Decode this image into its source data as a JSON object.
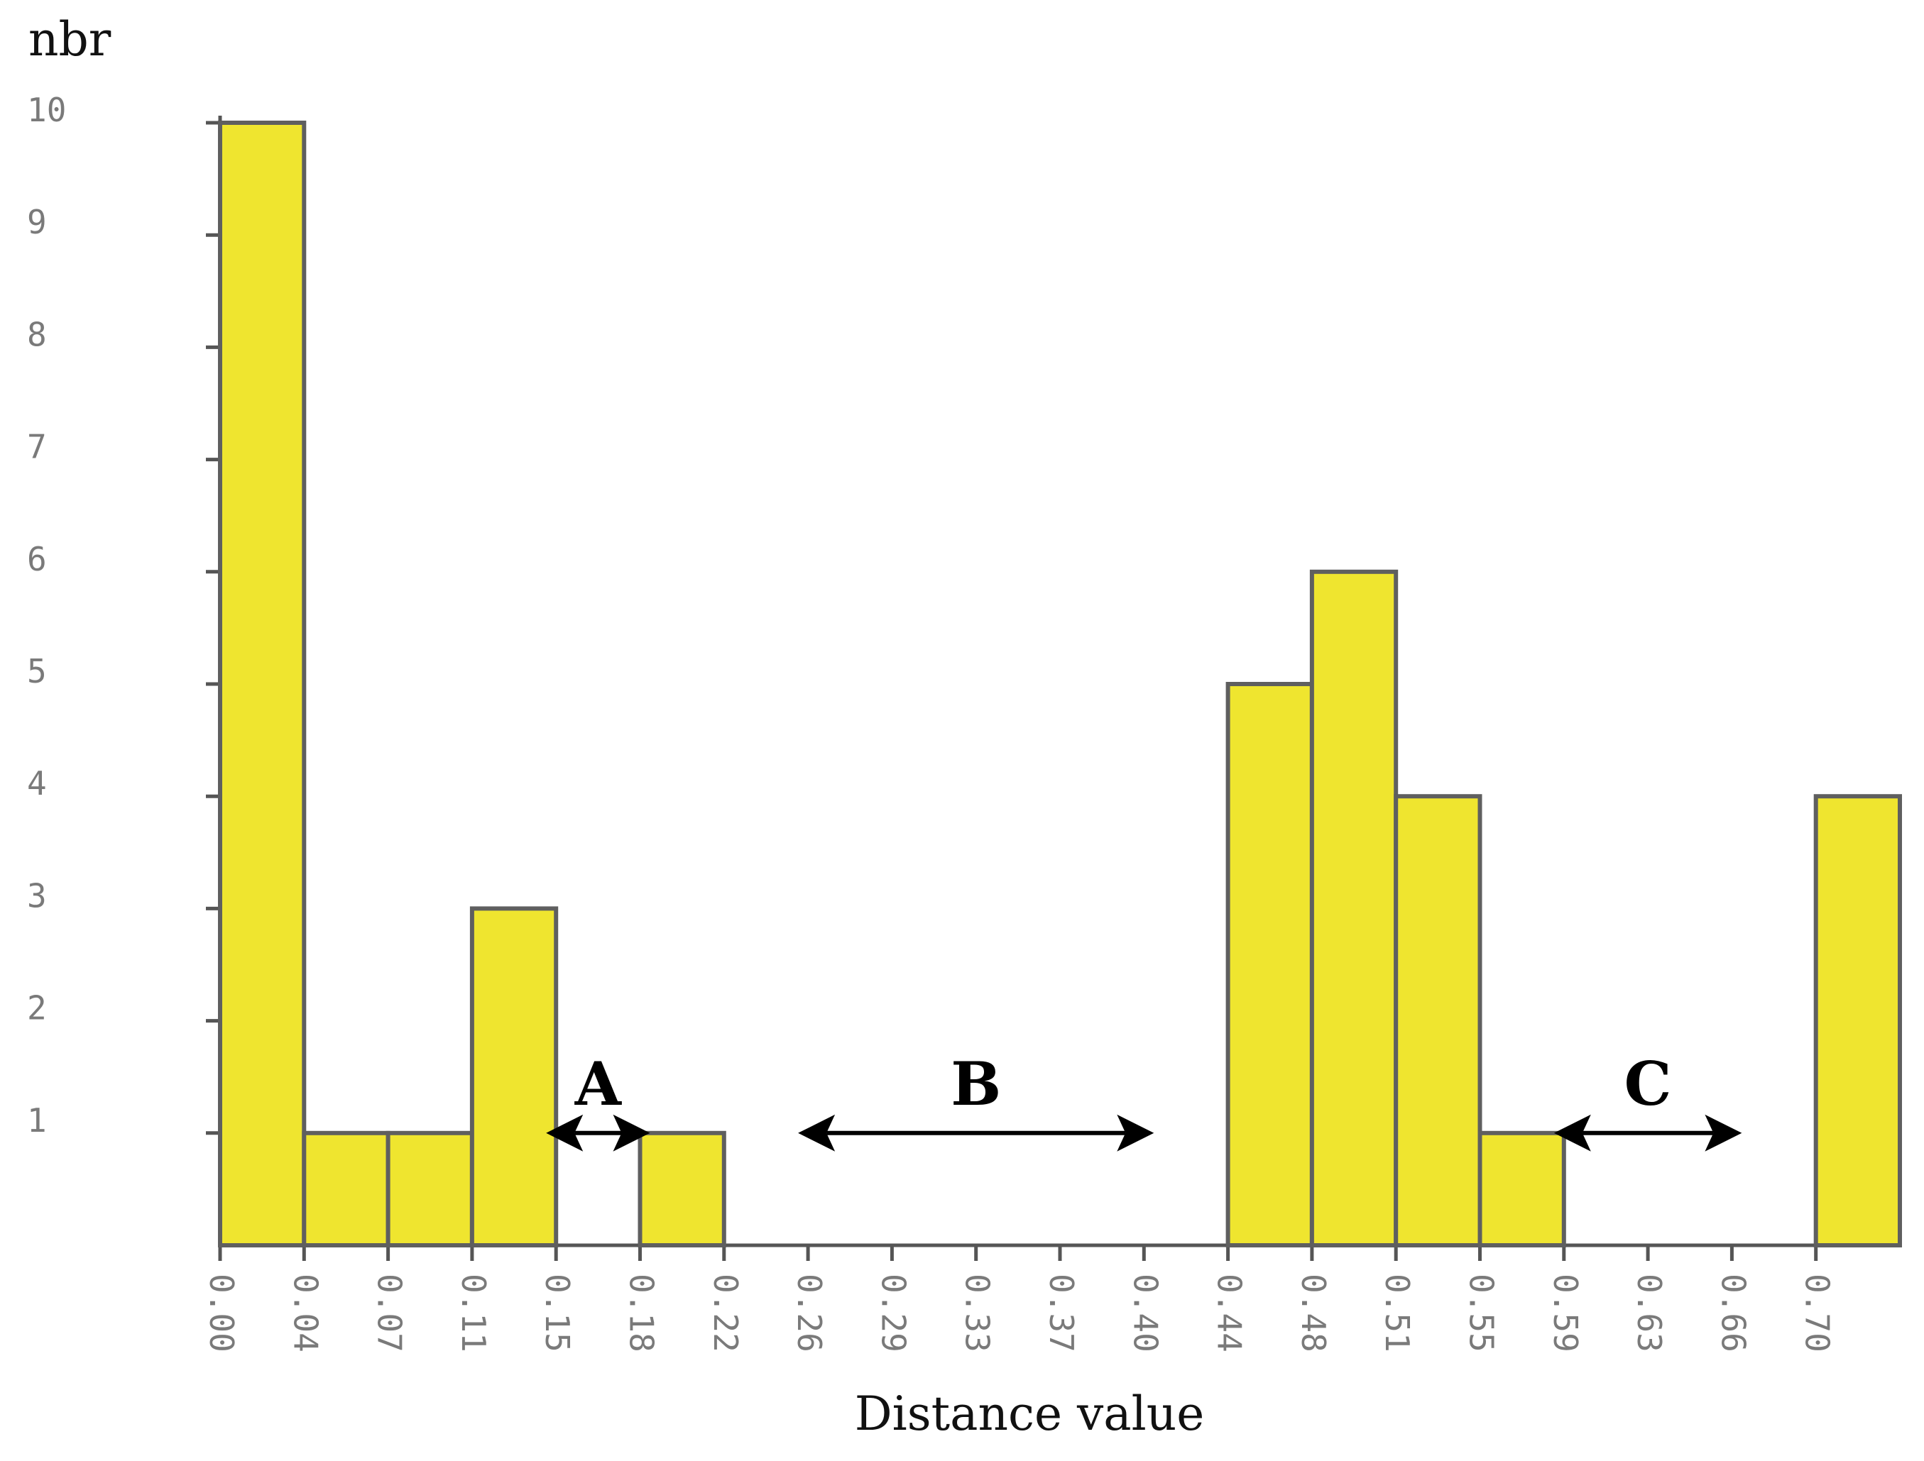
{
  "chart_data": {
    "type": "bar",
    "ylabel": "nbr",
    "xlabel": "Distance value",
    "ylim": [
      0,
      10
    ],
    "yticks": [
      "1",
      "2",
      "3",
      "4",
      "5",
      "6",
      "7",
      "8",
      "9",
      "10"
    ],
    "categories": [
      "0.00",
      "0.04",
      "0.07",
      "0.11",
      "0.15",
      "0.18",
      "0.22",
      "0.26",
      "0.29",
      "0.33",
      "0.37",
      "0.40",
      "0.44",
      "0.48",
      "0.51",
      "0.55",
      "0.59",
      "0.63",
      "0.66",
      "0.70"
    ],
    "values": [
      10,
      1,
      1,
      3,
      0,
      1,
      0,
      0,
      0,
      0,
      0,
      0,
      5,
      6,
      4,
      1,
      0,
      0,
      0,
      4
    ],
    "bar_color": "#efe52f",
    "bar_edge_color": "#5f5f5f",
    "grid": false,
    "annotations": [
      {
        "label": "A",
        "from": "0.15",
        "to": "0.18",
        "y": 1
      },
      {
        "label": "B",
        "from": "0.26",
        "to": "0.40",
        "y": 1
      },
      {
        "label": "C",
        "from": "0.59",
        "to": "0.66",
        "y": 1
      }
    ]
  }
}
